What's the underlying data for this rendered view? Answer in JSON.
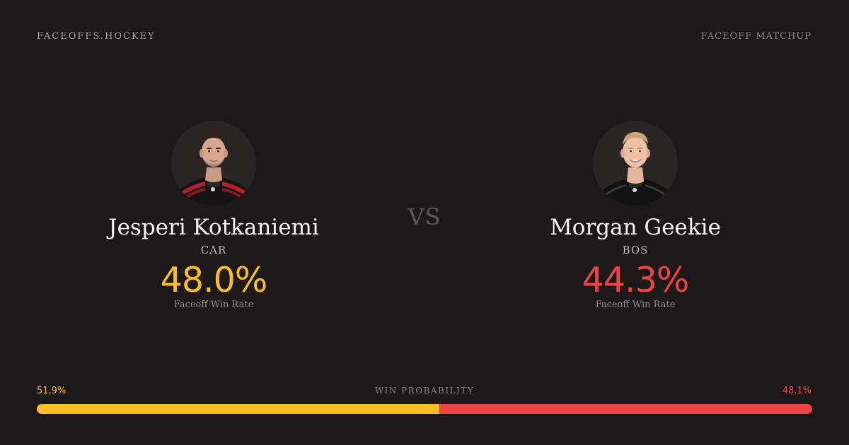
{
  "header": {
    "brand": "FACEOFFS.HOCKEY",
    "mode": "FACEOFF MATCHUP"
  },
  "player1": {
    "name": "Jesperi Kotkaniemi",
    "team": "CAR",
    "rate": "48.0%",
    "rate_label": "Faceoff Win Rate",
    "avatar_icon": "player-headshot",
    "accent": "#fbbf24"
  },
  "player2": {
    "name": "Morgan Geekie",
    "team": "BOS",
    "rate": "44.3%",
    "rate_label": "Faceoff Win Rate",
    "avatar_icon": "player-headshot",
    "accent": "#ef4444"
  },
  "versus": "VS",
  "probability": {
    "title": "WIN PROBABILITY",
    "left_label": "51.9%",
    "right_label": "48.1%",
    "left_value": 51.9,
    "right_value": 48.1
  },
  "colors": {
    "background": "#1d1918",
    "player1": "#fbbf24",
    "player2": "#ef4444"
  }
}
